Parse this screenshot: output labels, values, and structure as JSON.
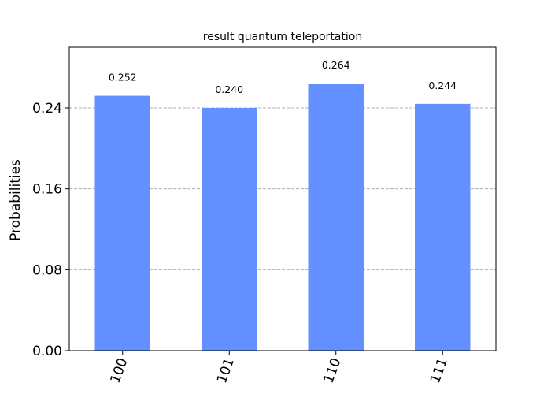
{
  "chart_data": {
    "type": "bar",
    "title": "result quantum teleportation",
    "xlabel": "",
    "ylabel": "Probabilities",
    "categories": [
      "100",
      "101",
      "110",
      "111"
    ],
    "values": [
      0.252,
      0.24,
      0.264,
      0.244
    ],
    "data_labels": [
      "0.252",
      "0.240",
      "0.264",
      "0.244"
    ],
    "ylim": [
      0,
      0.3
    ],
    "yticks": [
      0,
      0.08,
      0.16,
      0.24
    ],
    "ytick_labels": [
      "0.00",
      "0.08",
      "0.16",
      "0.24"
    ],
    "grid": "y-dashed",
    "legend": "none",
    "bar_color": "#648fff",
    "grid_color": "#b0b0b0",
    "xtick_rotation_deg": -70
  }
}
